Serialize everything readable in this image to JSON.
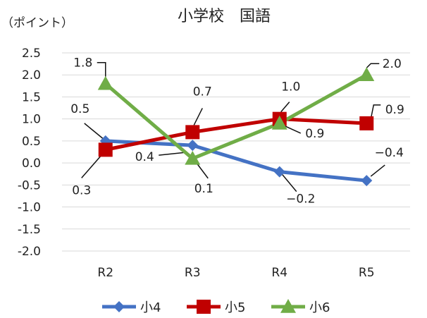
{
  "chart_data": {
    "type": "line",
    "title": "小学校　国語",
    "ylabel": "（ポイント）",
    "xlabel": "",
    "categories": [
      "R2",
      "R3",
      "R4",
      "R5"
    ],
    "ylim": [
      -2.0,
      2.5
    ],
    "ytick_step": 0.5,
    "yticks": [
      "2.5",
      "2.0",
      "1.5",
      "1.0",
      "0.5",
      "0.0",
      "-0.5",
      "-1.0",
      "-1.5",
      "-2.0"
    ],
    "grid": true,
    "legend_position": "bottom",
    "series": [
      {
        "name": "小4",
        "values": [
          0.5,
          0.4,
          -0.2,
          -0.4
        ],
        "color": "#4472C4",
        "marker": "diamond",
        "labels": [
          "0.5",
          "0.4",
          "−0.2",
          "−0.4"
        ]
      },
      {
        "name": "小5",
        "values": [
          0.3,
          0.7,
          1.0,
          0.9
        ],
        "color": "#C00000",
        "marker": "square",
        "labels": [
          "0.3",
          "0.7",
          "1.0",
          "0.9"
        ]
      },
      {
        "name": "小6",
        "values": [
          1.8,
          0.1,
          0.9,
          2.0
        ],
        "color": "#70AD47",
        "marker": "triangle",
        "labels": [
          "1.8",
          "0.1",
          "0.9",
          "2.0"
        ]
      }
    ]
  }
}
